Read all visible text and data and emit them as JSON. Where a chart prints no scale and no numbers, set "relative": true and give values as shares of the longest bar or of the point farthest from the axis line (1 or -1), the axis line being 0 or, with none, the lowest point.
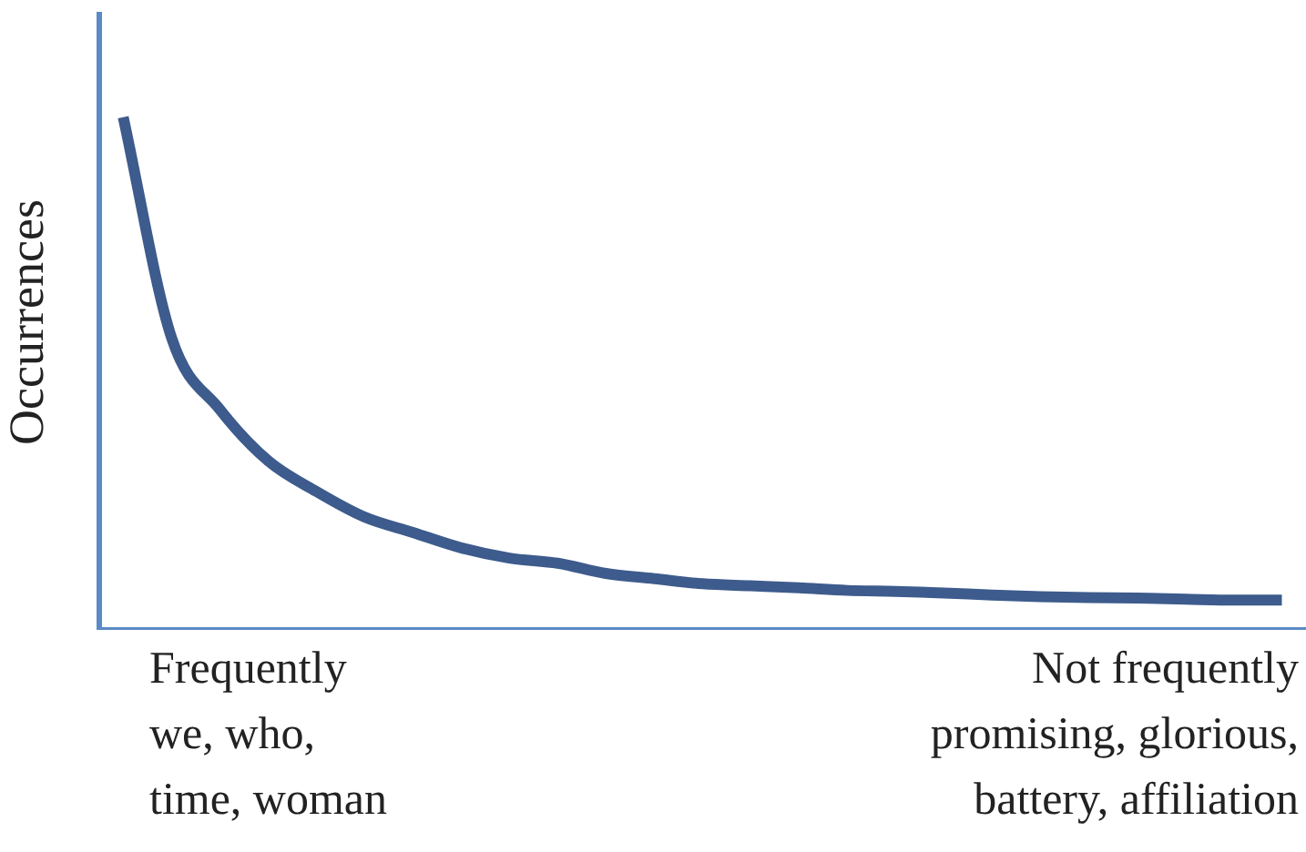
{
  "chart_data": {
    "type": "line",
    "relative": true,
    "ylabel": "Occurrences",
    "color": "#3d5b8c",
    "marker": "none",
    "grid": false,
    "legend": false,
    "categories": [
      null,
      null,
      null,
      null,
      null,
      null,
      null,
      null,
      null,
      null,
      null,
      null,
      null,
      null,
      null,
      null,
      null,
      null,
      null,
      null,
      null,
      null,
      null,
      null,
      null
    ],
    "values": [
      1,
      0.57,
      0.43,
      0.33,
      0.27,
      0.22,
      0.19,
      0.16,
      0.14,
      0.13,
      0.11,
      0.1,
      0.09,
      0.086,
      0.082,
      0.077,
      0.075,
      0.072,
      0.068,
      0.065,
      0.063,
      0.062,
      0.06,
      0.058,
      0.058
    ],
    "annotations": [
      "Frequently\nwe, who,\ntime, woman",
      "Not frequently\npromising, glorious,\nbattery, affiliation"
    ]
  }
}
